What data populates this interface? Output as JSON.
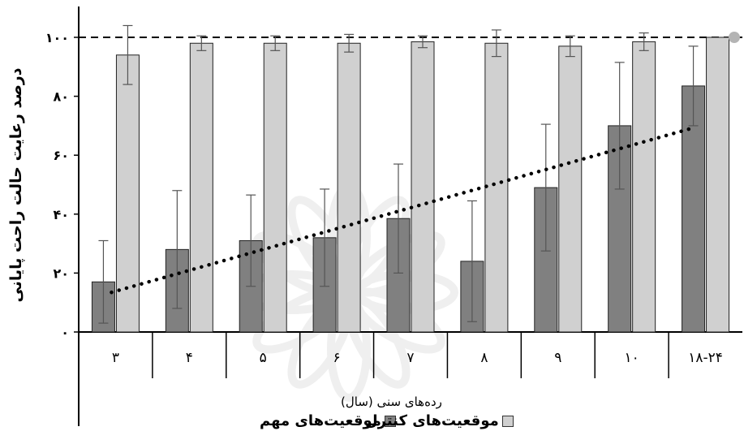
{
  "chart_data": {
    "type": "bar",
    "title": "",
    "ylabel": "درصد رعایت حالت راحت پایانی",
    "xlabel": "رده‌های سنی (سال)",
    "categories": [
      "۳",
      "۴",
      "۵",
      "۶",
      "۷",
      "۸",
      "۹",
      "۱۰",
      "۱۸-۲۴"
    ],
    "ylim": [
      0,
      100
    ],
    "yticks": [
      0,
      20,
      40,
      60,
      80,
      100
    ],
    "ytick_labels": [
      "۰",
      "۲۰",
      "۴۰",
      "۶۰",
      "۸۰",
      "۱۰۰"
    ],
    "reference_line": 100,
    "trendline": {
      "series": "موقعیت‌های مهم",
      "type": "linear",
      "style": "dotted"
    },
    "series": [
      {
        "name": "موقعیت‌های مهم",
        "color": "#808080",
        "values": [
          17,
          28,
          31,
          32,
          38.5,
          24,
          49,
          70,
          83.5
        ],
        "error": [
          14,
          20,
          15.5,
          16.5,
          18.5,
          20.5,
          21.5,
          21.5,
          13.5
        ]
      },
      {
        "name": "موقعیت‌های کنترل",
        "color": "#d0d0d0",
        "values": [
          94,
          98,
          98,
          98,
          98.5,
          98,
          97,
          98.5,
          100
        ],
        "error": [
          10,
          2.5,
          2.5,
          3,
          2,
          4.5,
          3.5,
          3,
          0
        ]
      }
    ]
  }
}
